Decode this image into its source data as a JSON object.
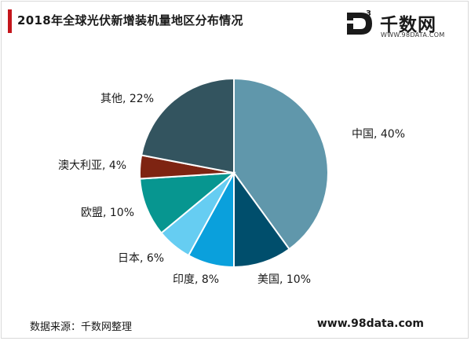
{
  "title": "2018年全球光伏新增装机量地区分布情况",
  "logo": {
    "mark_letter": "D",
    "mark_superscript": "3",
    "name": "千数网",
    "url": "WWW.98DATA.COM"
  },
  "source": "数据来源：千数网整理",
  "site": "www.98data.com",
  "chart_data": {
    "type": "pie",
    "title": "2018年全球光伏新增装机量地区分布情况",
    "start_angle_deg": 0,
    "direction": "clockwise",
    "slices": [
      {
        "name": "中国",
        "value": 40,
        "label": "中国, 40%",
        "color": "#6097ab"
      },
      {
        "name": "美国",
        "value": 10,
        "label": "美国, 10%",
        "color": "#004e6c"
      },
      {
        "name": "印度",
        "value": 8,
        "label": "印度, 8%",
        "color": "#0aa0dc"
      },
      {
        "name": "日本",
        "value": 6,
        "label": "日本, 6%",
        "color": "#66cdf2"
      },
      {
        "name": "欧盟",
        "value": 10,
        "label": "欧盟, 10%",
        "color": "#079690"
      },
      {
        "name": "澳大利亚",
        "value": 4,
        "label": "澳大利亚, 4%",
        "color": "#7e2412"
      },
      {
        "name": "其他",
        "value": 22,
        "label": "其他, 22%",
        "color": "#33545f"
      }
    ]
  }
}
